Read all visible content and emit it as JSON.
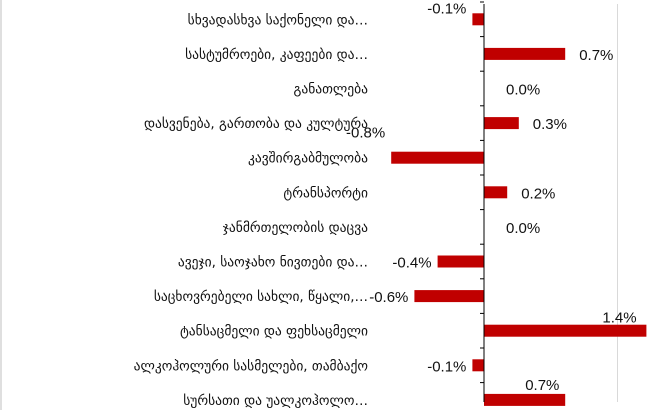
{
  "chart_data": {
    "type": "bar",
    "orientation": "horizontal",
    "title": "",
    "xlabel": "",
    "ylabel": "",
    "grid": false,
    "legend": "none",
    "bar_color": "#c00000",
    "gridline_color": "#d9d9d9",
    "axis_color": "#000000",
    "categories": [
      "სხვადასხვა საქონელი და…",
      "სასტუმროები, კაფეები და…",
      "განათლება",
      "დასვენება, გართობა და კულტურა",
      "კავშირგაბმულობა",
      "ტრანსპორტი",
      "ჯანმრთელობის დაცვა",
      "ავეჯი, საოჯახო ნივთები და…",
      "საცხოვრებელი სახლი, წყალი,…",
      "ტანსაცმელი და ფეხსაცმელი",
      "ალკოჰოლური სასმელები, თამბაქო",
      "სურსათი და უალკოჰოლო…"
    ],
    "values": [
      -0.1,
      0.7,
      0.0,
      0.3,
      -0.8,
      0.2,
      0.0,
      -0.4,
      -0.6,
      1.4,
      -0.1,
      0.7
    ],
    "value_labels": [
      "-0.1%",
      "0.7%",
      "0.0%",
      "0.3%",
      "-0.8%",
      "0.2%",
      "0.0%",
      "-0.4%",
      "-0.6%",
      "1.4%",
      "-0.1%",
      "0.7%"
    ],
    "xlim": [
      -1.0,
      1.6
    ]
  }
}
